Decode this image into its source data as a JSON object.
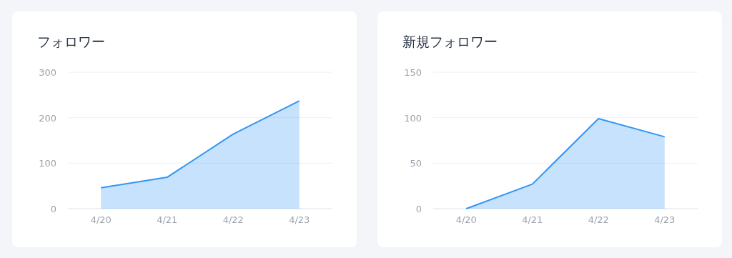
{
  "chart_data": [
    {
      "type": "area",
      "title": "フォロワー",
      "categories": [
        "4/20",
        "4/21",
        "4/22",
        "4/23"
      ],
      "series": [
        {
          "color": "#3396f4",
          "values": [
            46,
            69,
            164,
            237
          ]
        }
      ],
      "ylim": [
        0,
        300
      ],
      "yticks": [
        0,
        100,
        200,
        300
      ],
      "grid": "y"
    },
    {
      "type": "area",
      "title": "新規フォロワー",
      "categories": [
        "4/20",
        "4/21",
        "4/22",
        "4/23"
      ],
      "series": [
        {
          "color": "#3396f4",
          "values": [
            0,
            27,
            99,
            79
          ]
        }
      ],
      "ylim": [
        0,
        150
      ],
      "yticks": [
        0,
        50,
        100,
        150
      ],
      "grid": "y"
    }
  ]
}
